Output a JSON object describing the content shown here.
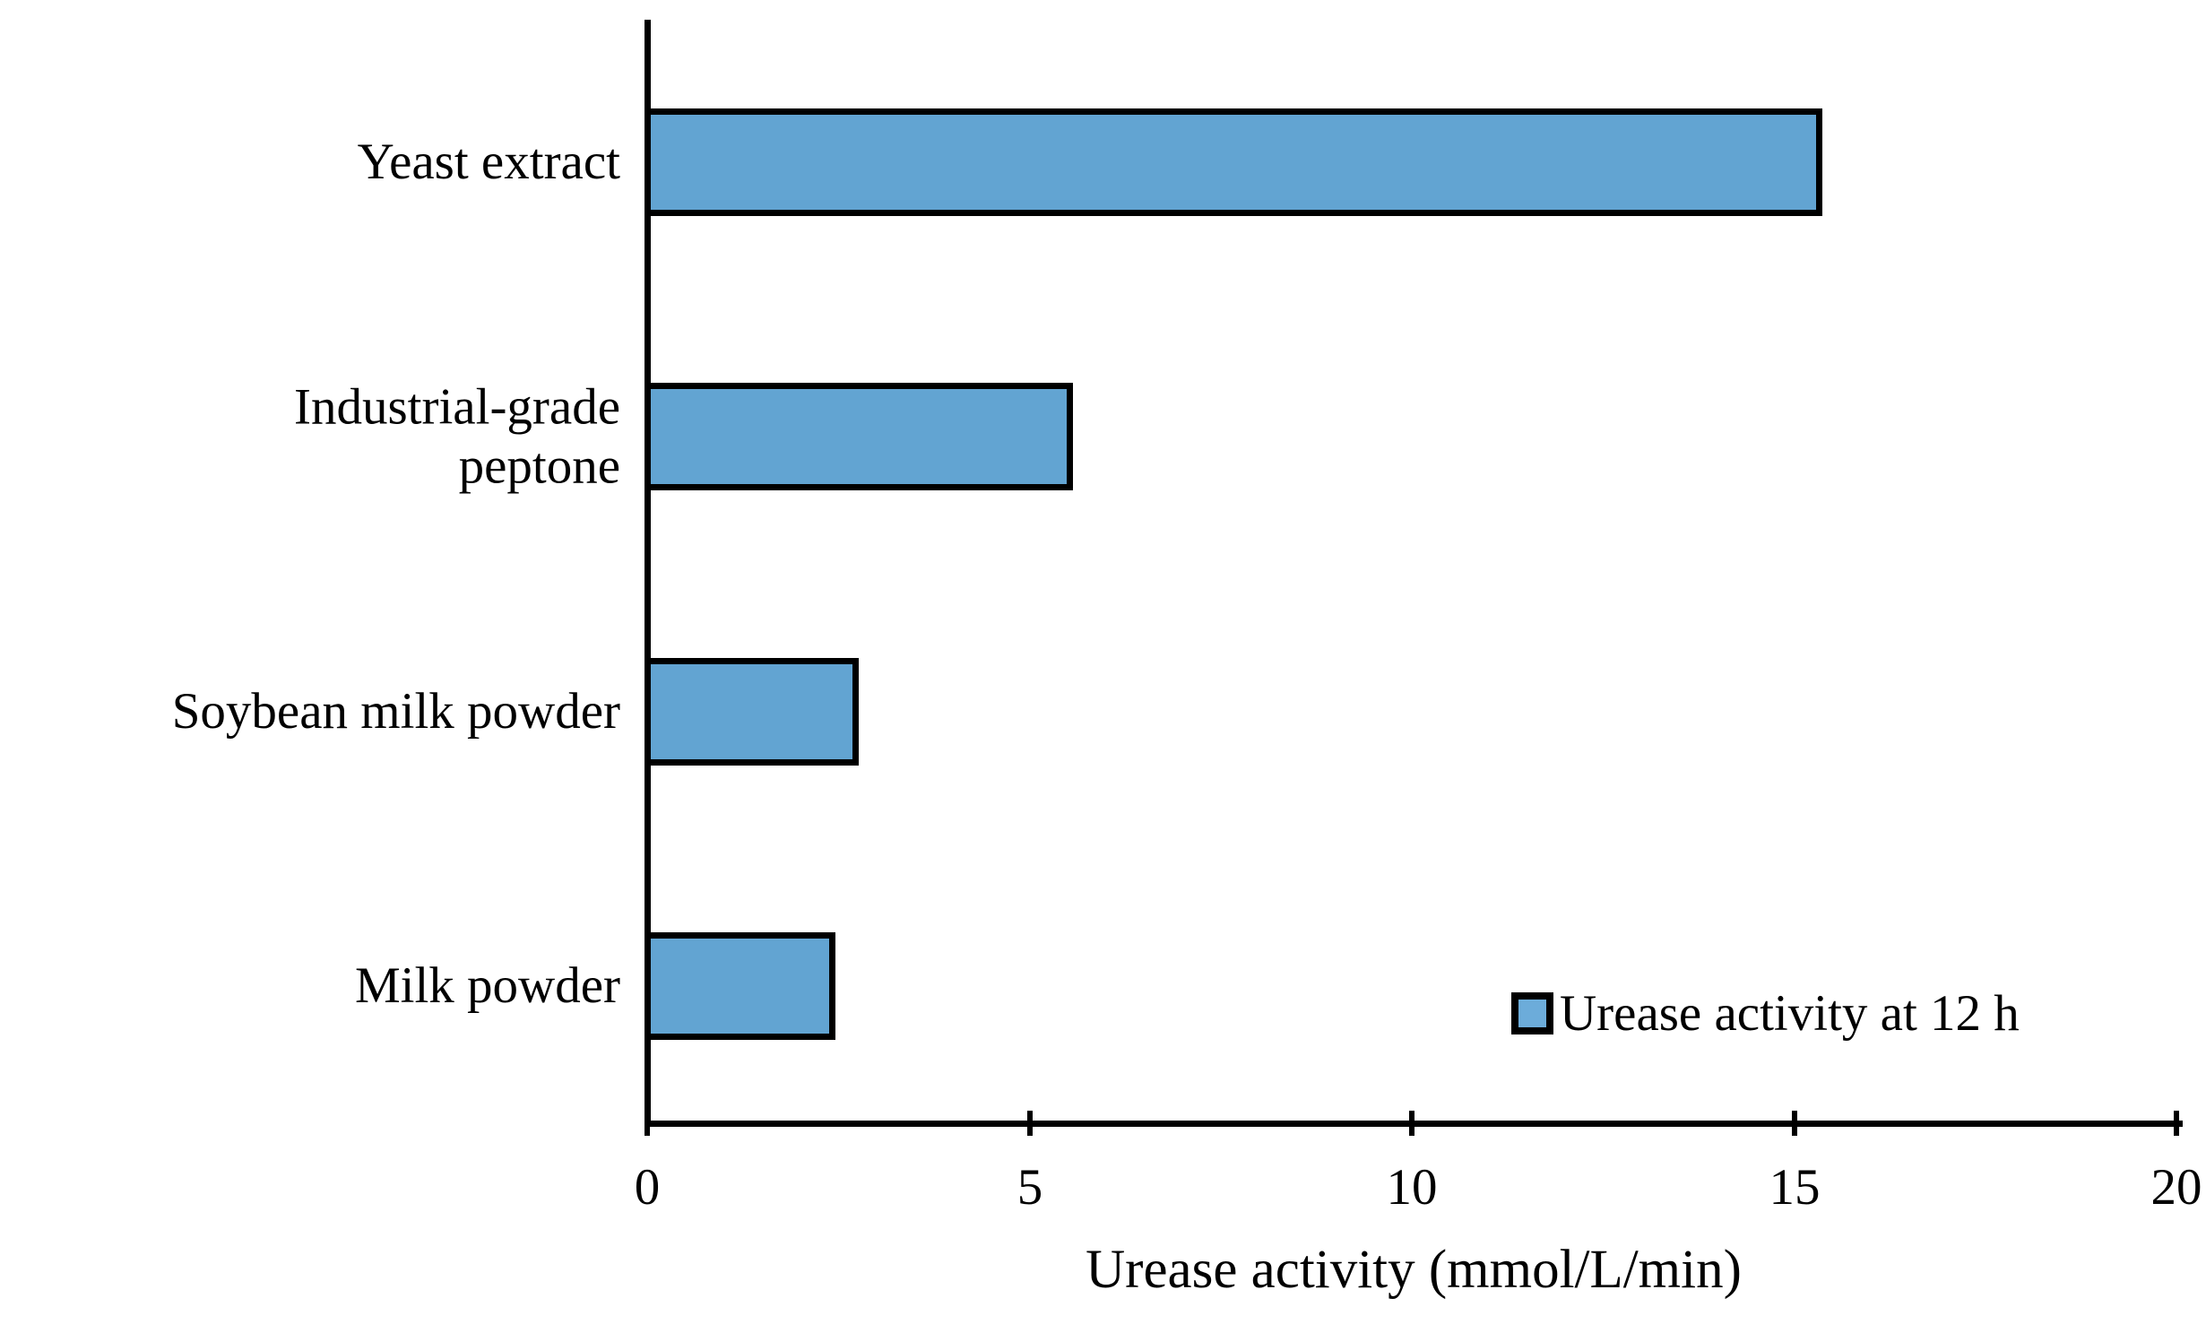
{
  "chart_data": {
    "type": "bar",
    "orientation": "horizontal",
    "title": "",
    "categories": [
      "Yeast extract",
      "Industrial-grade\npeptone",
      "Soybean milk powder",
      "Milk powder"
    ],
    "series": [
      {
        "name": "Urease activity at 12 h",
        "values": [
          15.4,
          5.6,
          2.8,
          2.5
        ]
      }
    ],
    "xlabel": "Urease activity (mmol/L/min)",
    "ylabel": "",
    "xlim": [
      0,
      20
    ],
    "xticks": [
      0,
      5,
      10,
      15,
      20
    ],
    "xtick_labels": [
      "0",
      "5",
      "10",
      "15",
      "20"
    ],
    "grid": false,
    "legend_position": "inside-bottom-right",
    "colors": {
      "bar_fill": "#62A4D2",
      "bar_border": "#000000",
      "legend_marker_fill": "#6CACDA",
      "axis": "#000000",
      "text": "#000000",
      "background": "#FFFFFF"
    }
  }
}
